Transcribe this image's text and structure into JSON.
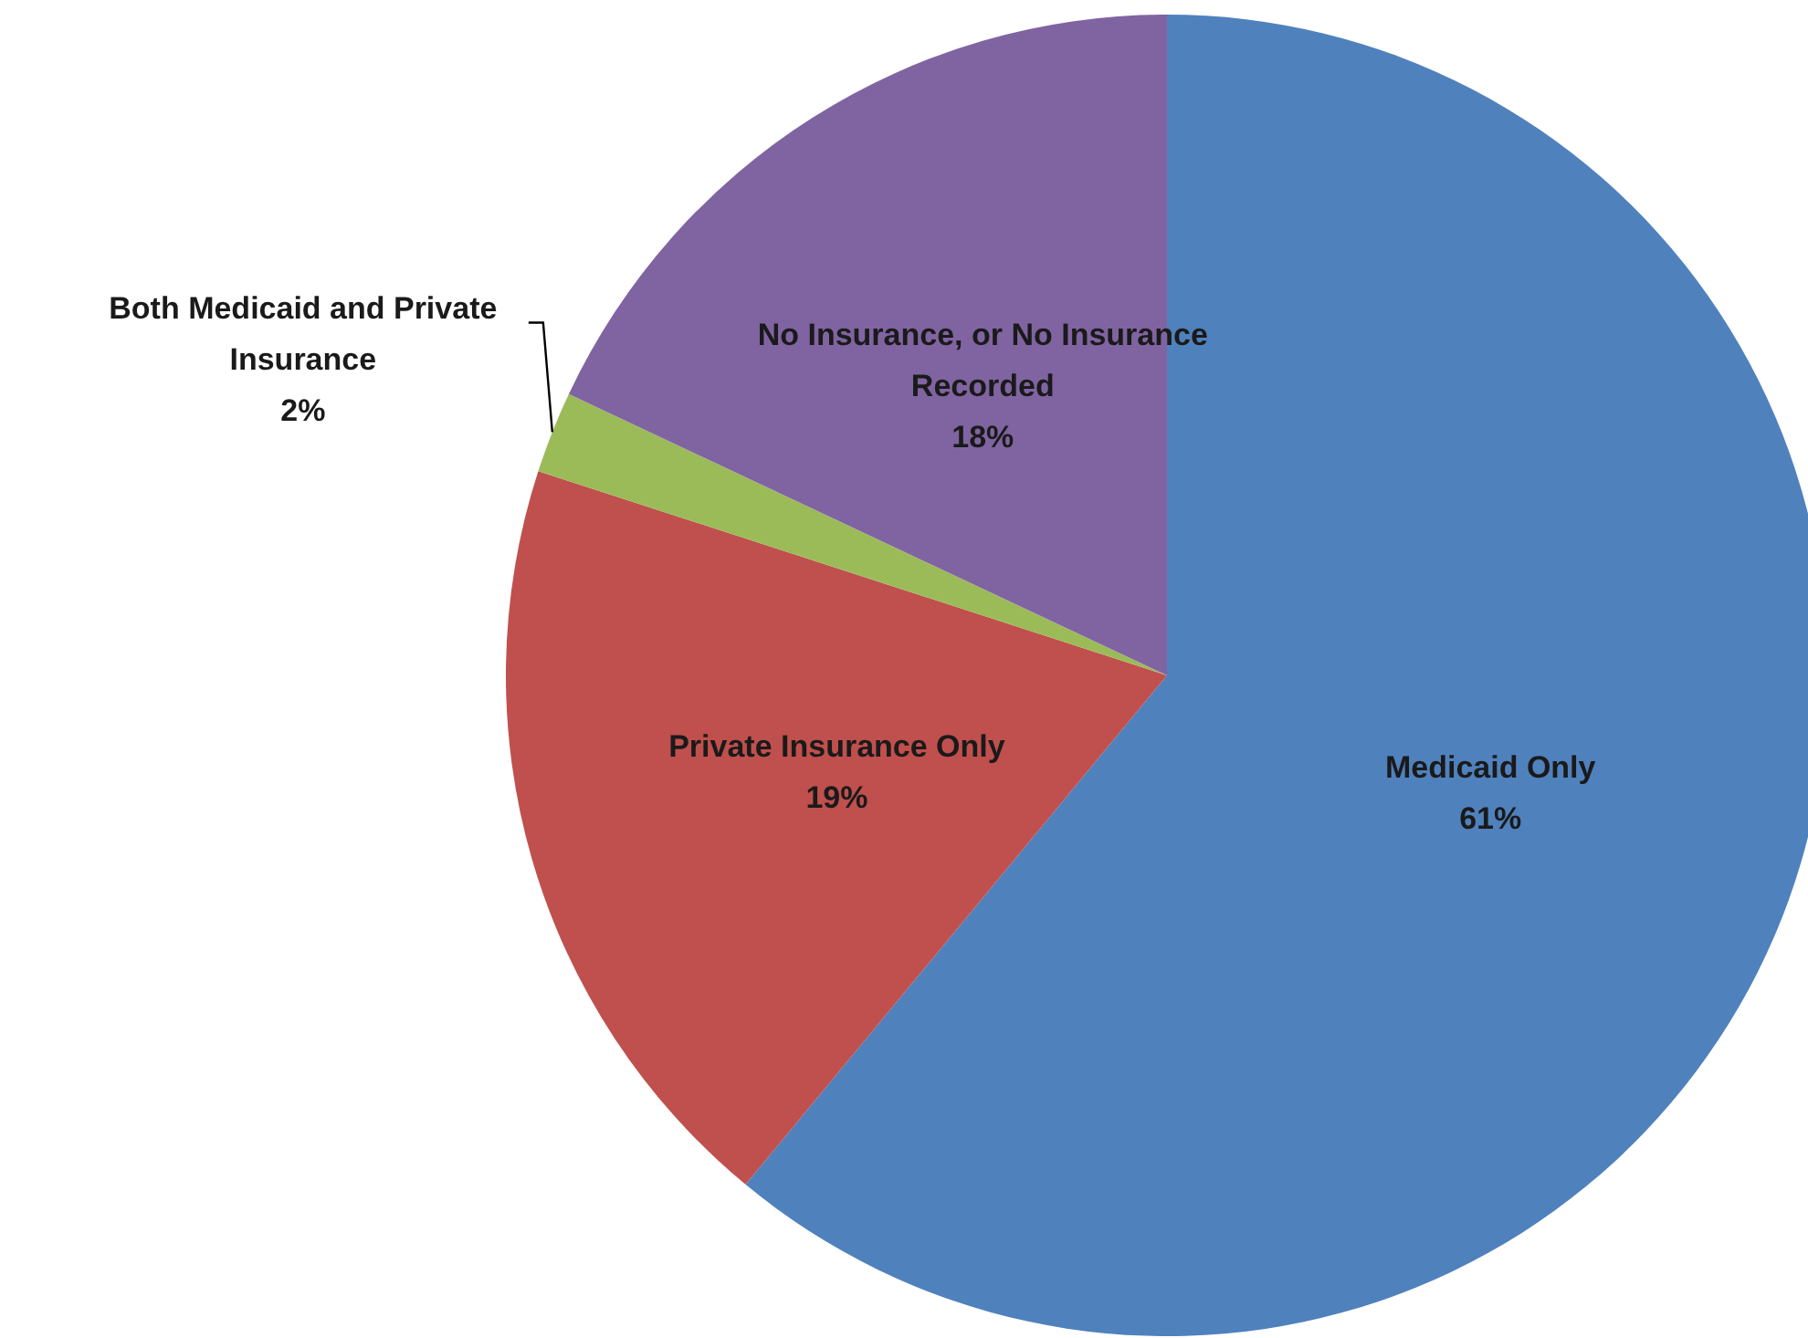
{
  "chart_data": {
    "type": "pie",
    "categories": [
      "Medicaid Only",
      "Private Insurance Only",
      "Both Medicaid and Private Insurance",
      "No Insurance, or No Insurance Recorded"
    ],
    "values": [
      61,
      19,
      2,
      18
    ],
    "colors": [
      "#4f81bd",
      "#c0504d",
      "#9bbb59",
      "#8064a2"
    ],
    "value_labels": [
      "61%",
      "19%",
      "2%",
      "18%"
    ]
  }
}
